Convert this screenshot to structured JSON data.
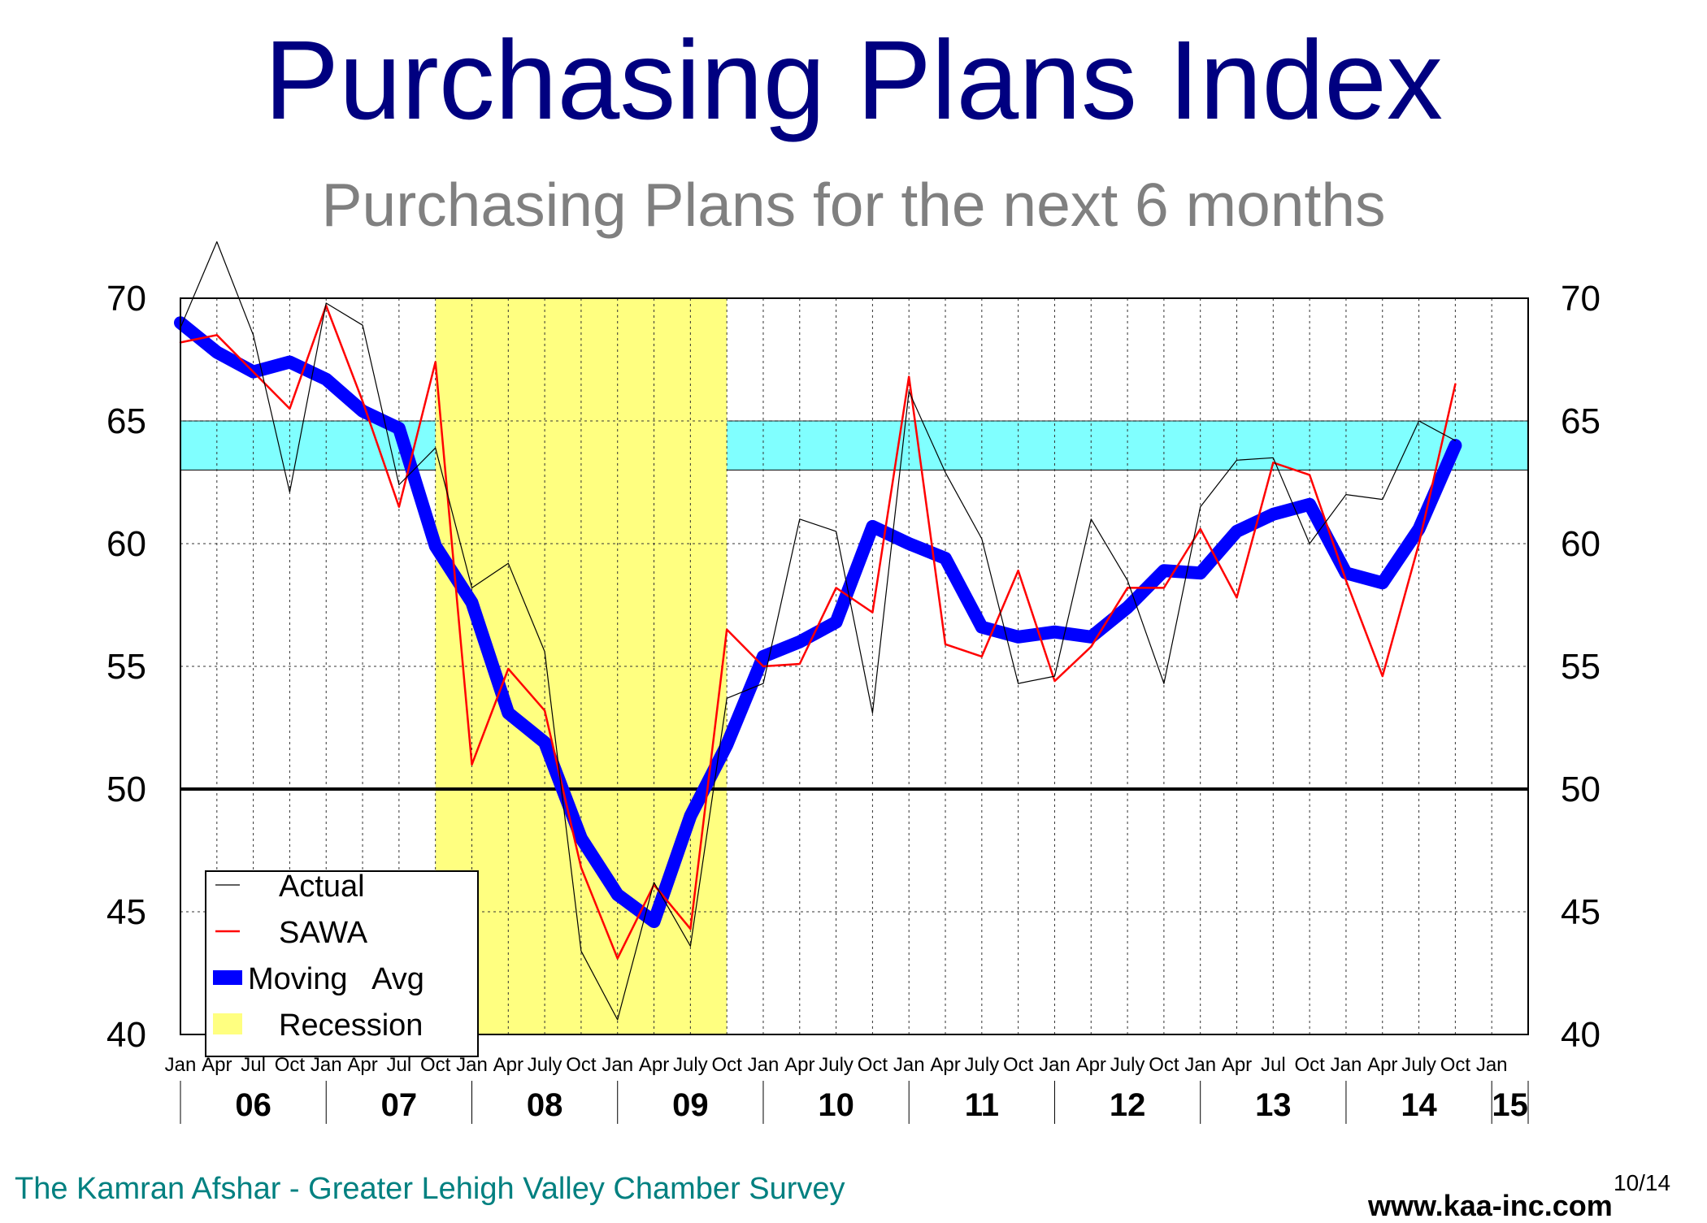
{
  "title": "Purchasing Plans Index",
  "subtitle": "Purchasing Plans for the next 6 months",
  "footer": {
    "left": "The Kamran Afshar - Greater Lehigh Valley Chamber Survey",
    "url": "www.kaa-inc.com",
    "date": "10/14"
  },
  "colors": {
    "title": "#000080",
    "subtitle": "#808080",
    "actual": "#000000",
    "sawa": "#ff0000",
    "moving_avg": "#0000ff",
    "recession": "#ffff80",
    "band": "#80ffff",
    "footer": "#008080"
  },
  "chart_data": {
    "type": "line",
    "ylim": [
      40,
      70
    ],
    "xlim": [
      2006.0,
      2015.25
    ],
    "y_ticks": [
      40,
      45,
      50,
      55,
      60,
      65,
      70
    ],
    "y_tick_labels": [
      "40",
      "45",
      "50",
      "55",
      "60",
      "65",
      "70"
    ],
    "quarter_labels": [
      "Jan",
      "Apr",
      "Jul",
      "Oct",
      "Jan",
      "Apr",
      "Jul",
      "Oct",
      "Jan",
      "Apr",
      "July",
      "Oct",
      "Jan",
      "Apr",
      "July",
      "Oct",
      "Jan",
      "Apr",
      "July",
      "Oct",
      "Jan",
      "Apr",
      "July",
      "Oct",
      "Jan",
      "Apr",
      "July",
      "Oct",
      "Jan",
      "Apr",
      "Jul",
      "Oct",
      "Jan",
      "Apr",
      "July",
      "Oct",
      "Jan"
    ],
    "year_labels": [
      "06",
      "07",
      "08",
      "09",
      "10",
      "11",
      "12",
      "13",
      "14",
      "15"
    ],
    "recession": [
      2007.75,
      2009.75
    ],
    "band": [
      63,
      65
    ],
    "reference_line": 50,
    "legend": [
      "Actual",
      "SAWA",
      "Moving   Avg",
      "Recession"
    ],
    "legend_position": "bottom-left",
    "grid": true,
    "series": [
      {
        "name": "Actual",
        "color": "#000000",
        "x": [
          2006.0,
          2006.25,
          2006.5,
          2006.75,
          2007.0,
          2007.25,
          2007.5,
          2007.75,
          2008.0,
          2008.25,
          2008.5,
          2008.75,
          2009.0,
          2009.25,
          2009.5,
          2009.75,
          2010.0,
          2010.25,
          2010.5,
          2010.75,
          2011.0,
          2011.25,
          2011.5,
          2011.75,
          2012.0,
          2012.25,
          2012.5,
          2012.75,
          2013.0,
          2013.25,
          2013.5,
          2013.75,
          2014.0,
          2014.25,
          2014.5,
          2014.75
        ],
        "values": [
          68.8,
          72.3,
          68.5,
          62.1,
          69.8,
          68.9,
          62.4,
          63.9,
          58.2,
          59.2,
          55.6,
          43.4,
          40.6,
          46.2,
          43.6,
          53.7,
          54.3,
          61.0,
          60.5,
          53.1,
          66.2,
          62.9,
          60.2,
          54.3,
          54.6,
          61.0,
          58.5,
          54.3,
          61.5,
          63.4,
          63.5,
          60.0,
          62.0,
          61.8,
          65.0,
          64.2
        ]
      },
      {
        "name": "SAWA",
        "color": "#ff0000",
        "x": [
          2006.0,
          2006.25,
          2006.5,
          2006.75,
          2007.0,
          2007.25,
          2007.5,
          2007.75,
          2008.0,
          2008.25,
          2008.5,
          2008.75,
          2009.0,
          2009.25,
          2009.5,
          2009.75,
          2010.0,
          2010.25,
          2010.5,
          2010.75,
          2011.0,
          2011.25,
          2011.5,
          2011.75,
          2012.0,
          2012.25,
          2012.5,
          2012.75,
          2013.0,
          2013.25,
          2013.5,
          2013.75,
          2014.0,
          2014.25,
          2014.5,
          2014.75
        ],
        "values": [
          68.2,
          68.5,
          67.0,
          65.5,
          69.7,
          65.8,
          61.5,
          67.4,
          51.0,
          54.9,
          53.2,
          46.8,
          43.1,
          46.1,
          44.3,
          56.5,
          55.0,
          55.1,
          58.2,
          57.2,
          66.8,
          55.9,
          55.4,
          58.9,
          54.4,
          55.8,
          58.2,
          58.2,
          60.6,
          57.8,
          63.3,
          62.8,
          58.5,
          54.6,
          60.0,
          66.5
        ]
      },
      {
        "name": "Moving   Avg",
        "color": "#0000ff",
        "x": [
          2006.0,
          2006.25,
          2006.5,
          2006.75,
          2007.0,
          2007.25,
          2007.5,
          2007.75,
          2008.0,
          2008.25,
          2008.5,
          2008.75,
          2009.0,
          2009.25,
          2009.5,
          2009.75,
          2010.0,
          2010.25,
          2010.5,
          2010.75,
          2011.0,
          2011.25,
          2011.5,
          2011.75,
          2012.0,
          2012.25,
          2012.5,
          2012.75,
          2013.0,
          2013.25,
          2013.5,
          2013.75,
          2014.0,
          2014.25,
          2014.5,
          2014.75
        ],
        "values": [
          69.0,
          67.8,
          67.0,
          67.4,
          66.7,
          65.4,
          64.7,
          59.9,
          57.6,
          53.1,
          51.9,
          48.0,
          45.7,
          44.6,
          48.9,
          51.8,
          55.4,
          56.0,
          56.8,
          60.7,
          60.0,
          59.4,
          56.6,
          56.2,
          56.4,
          56.2,
          57.4,
          58.9,
          58.8,
          60.5,
          61.2,
          61.6,
          58.8,
          58.4,
          60.6,
          64.0
        ]
      }
    ]
  }
}
